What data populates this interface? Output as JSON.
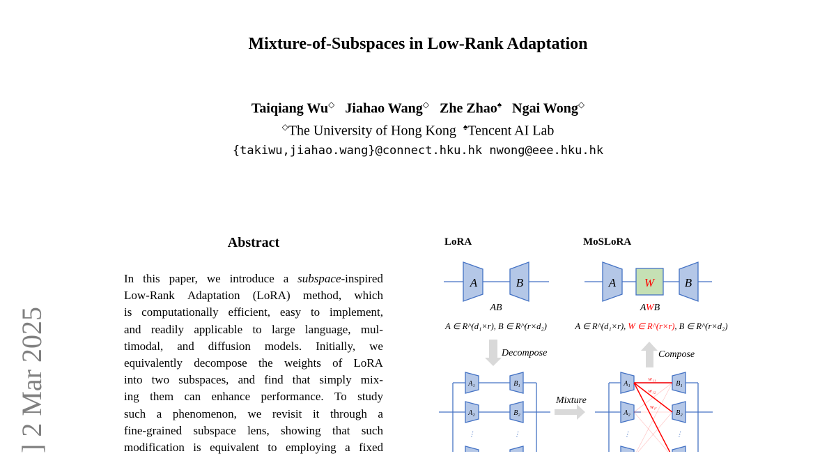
{
  "paper": {
    "title": "Mixture-of-Subspaces in Low-Rank Adaptation",
    "authors": [
      {
        "name": "Taiqiang Wu",
        "mark": "◇"
      },
      {
        "name": "Jiahao Wang",
        "mark": "◇"
      },
      {
        "name": "Zhe Zhao",
        "mark": "♠"
      },
      {
        "name": "Ngai Wong",
        "mark": "◇"
      }
    ],
    "affiliations": [
      {
        "mark": "◇",
        "name": "The University of Hong Kong"
      },
      {
        "mark": "♠",
        "name": "Tencent AI Lab"
      }
    ],
    "emails": "{takiwu,jiahao.wang}@connect.hku.hk nwong@eee.hku.hk",
    "arxiv_stamp": "] 2 Mar 2025",
    "abstract_heading": "Abstract",
    "abstract_lines": [
      "In this paper, we introduce a subspace-inspired",
      "Low-Rank Adaptation (LoRA) method, which",
      "is computationally efficient, easy to implement,",
      "and readily applicable to large language, mul-",
      "timodal, and diffusion models. Initially, we",
      "equivalently decompose the weights of LoRA",
      "into two subspaces, and find that simply mix-",
      "ing them can enhance performance. To study",
      "such a phenomenon, we revisit it through a",
      "fine-grained subspace lens, showing that such",
      "modification is equivalent to employing a fixed"
    ]
  },
  "figure": {
    "lora_label": "LoRA",
    "moslora_label": "MoSLoRA",
    "A": "A",
    "B": "B",
    "W": "W",
    "AB": "AB",
    "AWB_A": "A",
    "AWB_W": "W",
    "AWB_B": "B",
    "lora_eq": "A ∈ R^(d₁×r), B ∈ R^(r×d₂)",
    "moslora_eq_a": "A ∈ R^(d₁×r), ",
    "moslora_eq_w": "W ∈ R^(r×r)",
    "moslora_eq_b": ", B ∈ R^(r×d₂)",
    "decompose": "Decompose",
    "compose": "Compose",
    "mixture": "Mixture",
    "A1": "A₁",
    "A2": "A₂",
    "B1": "B₁",
    "B2": "B₂",
    "w11": "w₁₁",
    "w12": "w₁₂",
    "w1r": "w₁ᵣ",
    "colors": {
      "block": "#b4c7e7",
      "line": "#4472c4",
      "w_block": "#c5e0b4",
      "red": "#ff0000",
      "arrow": "#d9d9d9"
    }
  }
}
